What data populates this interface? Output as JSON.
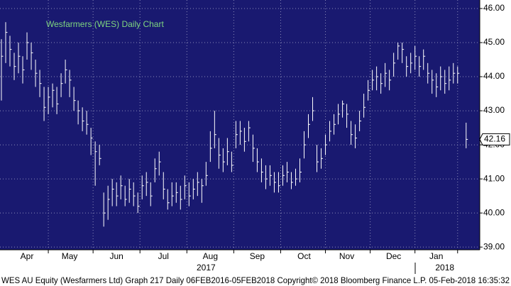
{
  "chart_data": {
    "type": "hlc",
    "title": "Wesfarmers (WES) Daily Chart",
    "footer": "WES AU Equity (Wesfarmers Ltd) Graph 217  Daily 06FEB2016-05FEB2018  Copyright© 2018 Bloomberg Finance L.P.    05-Feb-2018 16:35:32",
    "color": "#ffffff",
    "background": "#191970",
    "title_color": "#7fd67f",
    "grid": true,
    "high": [
      45.1,
      45.6,
      45.2,
      44.7,
      45.0,
      44.6,
      45.3,
      45.0,
      44.5,
      44.2,
      43.7,
      43.7,
      43.8,
      43.7,
      44.1,
      44.5,
      44.2,
      43.7,
      43.3,
      43.1,
      43.0,
      42.5,
      42.1,
      42.0,
      40.6,
      40.8,
      41.0,
      40.9,
      41.1,
      40.8,
      41.0,
      40.9,
      40.6,
      41.1,
      41.2,
      40.9,
      41.6,
      41.8,
      41.2,
      40.7,
      40.9,
      40.9,
      40.8,
      41.1,
      40.9,
      41.0,
      41.2,
      41.0,
      41.5,
      42.4,
      43.0,
      42.2,
      41.9,
      42.2,
      41.8,
      42.7,
      42.7,
      42.5,
      42.7,
      42.3,
      41.9,
      41.6,
      41.4,
      41.4,
      41.2,
      41.2,
      41.4,
      41.5,
      41.2,
      41.3,
      41.6,
      42.4,
      42.9,
      43.4,
      42.0,
      41.9,
      42.3,
      42.7,
      42.9,
      43.2,
      43.3,
      43.2,
      42.7,
      42.6,
      43.0,
      43.5,
      43.9,
      44.2,
      44.3,
      44.1,
      44.4,
      44.2,
      44.7,
      45.0,
      45.0,
      44.6,
      44.7,
      44.9,
      44.6,
      44.8,
      44.4,
      44.2,
      44.1,
      44.3,
      44.2,
      44.3,
      44.4,
      44.3,
      null,
      42.65
    ],
    "low": [
      43.3,
      44.4,
      44.3,
      43.9,
      44.1,
      43.8,
      44.5,
      44.2,
      43.7,
      43.4,
      42.7,
      42.9,
      43.1,
      42.9,
      43.4,
      43.8,
      43.4,
      43.0,
      42.6,
      42.4,
      42.3,
      41.7,
      40.8,
      41.4,
      39.6,
      39.8,
      40.2,
      40.2,
      40.4,
      40.2,
      40.3,
      40.2,
      40.0,
      40.4,
      40.5,
      40.2,
      40.9,
      41.1,
      40.4,
      40.1,
      40.2,
      40.3,
      40.1,
      40.4,
      40.2,
      40.4,
      40.5,
      40.3,
      40.8,
      41.5,
      41.9,
      41.3,
      41.2,
      41.4,
      41.2,
      41.9,
      42.0,
      41.8,
      42.1,
      41.5,
      41.2,
      40.9,
      40.7,
      40.8,
      40.6,
      40.6,
      40.8,
      40.9,
      40.7,
      40.8,
      40.9,
      41.6,
      42.2,
      42.7,
      41.2,
      41.3,
      41.7,
      42.1,
      42.3,
      42.6,
      42.8,
      42.5,
      42.0,
      41.9,
      42.4,
      42.8,
      43.3,
      43.6,
      43.6,
      43.5,
      43.7,
      43.6,
      44.0,
      44.5,
      44.4,
      44.0,
      44.1,
      44.2,
      44.0,
      44.2,
      43.8,
      43.5,
      43.4,
      43.6,
      43.5,
      43.6,
      43.8,
      43.8,
      null,
      41.9
    ],
    "close": [
      44.6,
      45.3,
      44.8,
      44.3,
      44.6,
      44.2,
      45.0,
      44.7,
      44.1,
      43.8,
      43.1,
      43.4,
      43.6,
      43.2,
      43.8,
      44.2,
      43.9,
      43.3,
      43.0,
      42.7,
      42.6,
      42.2,
      41.8,
      41.6,
      40.0,
      40.4,
      40.7,
      40.5,
      40.8,
      40.4,
      40.7,
      40.5,
      40.2,
      40.8,
      40.9,
      40.5,
      41.3,
      41.5,
      40.7,
      40.3,
      40.5,
      40.6,
      40.4,
      40.8,
      40.5,
      40.7,
      40.9,
      40.8,
      41.1,
      41.9,
      42.3,
      41.7,
      41.5,
      41.8,
      41.4,
      42.3,
      42.4,
      42.1,
      42.5,
      41.9,
      41.5,
      41.2,
      41.0,
      41.1,
      40.9,
      40.8,
      41.1,
      41.2,
      40.9,
      41.0,
      41.2,
      42.0,
      42.6,
      43.0,
      41.5,
      41.6,
      42.0,
      42.4,
      42.6,
      42.9,
      43.2,
      42.9,
      42.3,
      42.2,
      42.7,
      43.1,
      43.6,
      43.9,
      44.0,
      43.8,
      44.1,
      43.9,
      44.4,
      44.9,
      44.8,
      44.3,
      44.4,
      44.6,
      44.3,
      44.6,
      44.1,
      43.9,
      43.7,
      44.0,
      43.8,
      43.9,
      44.1,
      44.1,
      null,
      42.16
    ],
    "xlim": [
      -0.33,
      112.2
    ],
    "xticks": [
      {
        "value": 6,
        "label": "Apr"
      },
      {
        "value": 16,
        "label": "May"
      },
      {
        "value": 27,
        "label": "Jun"
      },
      {
        "value": 38,
        "label": "Jul"
      },
      {
        "value": 49,
        "label": "Aug"
      },
      {
        "value": 60,
        "label": "Sep"
      },
      {
        "value": 71,
        "label": "Oct"
      },
      {
        "value": 81,
        "label": "Nov"
      },
      {
        "value": 92,
        "label": "Dec"
      },
      {
        "value": 102,
        "label": "Jan"
      }
    ],
    "year_ticks": [
      {
        "value": 48,
        "label": "2017"
      },
      {
        "value": 104,
        "label": "2018"
      }
    ],
    "ylim": [
      38.92,
      46.25
    ],
    "yticks": [
      {
        "value": 39,
        "label": "39.00"
      },
      {
        "value": 40,
        "label": "40.00"
      },
      {
        "value": 41,
        "label": "41.00"
      },
      {
        "value": 42,
        "label": "42.00"
      },
      {
        "value": 43,
        "label": "43.00"
      },
      {
        "value": 44,
        "label": "44.00"
      },
      {
        "value": 45,
        "label": "45.00"
      },
      {
        "value": 46,
        "label": "46.00"
      }
    ]
  }
}
